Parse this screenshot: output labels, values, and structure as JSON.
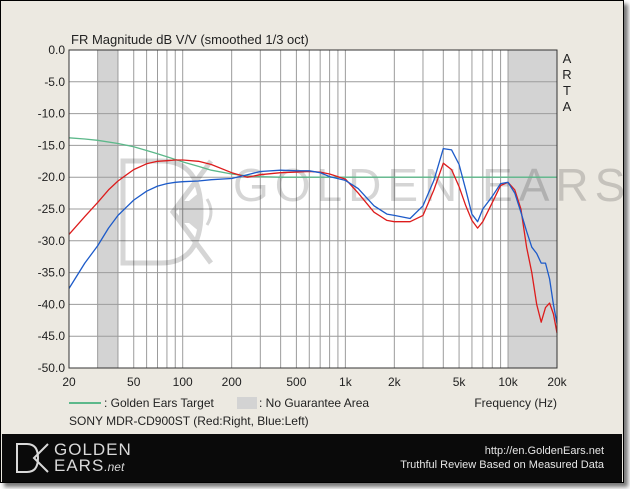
{
  "chart_data": {
    "type": "line",
    "title": "FR Magnitude dB V/V (smoothed 1/3 oct)",
    "side_label": "ARTA",
    "xlabel": "Frequency (Hz)",
    "x_scale": "log",
    "xlim": [
      20,
      20000
    ],
    "ylim": [
      -50,
      0
    ],
    "y_ticks": [
      "0.0",
      "-5.0",
      "-10.0",
      "-15.0",
      "-20.0",
      "-25.0",
      "-30.0",
      "-35.0",
      "-40.0",
      "-45.0",
      "-50.0"
    ],
    "x_ticks": [
      {
        "value": 20,
        "label": "20"
      },
      {
        "value": 50,
        "label": "50"
      },
      {
        "value": 100,
        "label": "100"
      },
      {
        "value": 200,
        "label": "200"
      },
      {
        "value": 500,
        "label": "500"
      },
      {
        "value": 1000,
        "label": "1k"
      },
      {
        "value": 2000,
        "label": "2k"
      },
      {
        "value": 5000,
        "label": "5k"
      },
      {
        "value": 10000,
        "label": "10k"
      },
      {
        "value": 20000,
        "label": "20k"
      }
    ],
    "grid": true,
    "no_guarantee_regions": [
      [
        30,
        40
      ],
      [
        10000,
        20000
      ]
    ],
    "watermark": "GOLDEN EARS",
    "series": [
      {
        "name": "Golden Ears Target",
        "color": "#5cb88a",
        "x": [
          20,
          25,
          30,
          40,
          50,
          60,
          70,
          80,
          100,
          125,
          150,
          200,
          250,
          300,
          400,
          500,
          1000,
          2000,
          5000,
          10000,
          20000
        ],
        "y": [
          -13.8,
          -14.0,
          -14.2,
          -14.7,
          -15.2,
          -15.8,
          -16.3,
          -16.8,
          -17.6,
          -18.3,
          -18.9,
          -19.5,
          -19.8,
          -19.9,
          -20.0,
          -20.0,
          -20.0,
          -20.0,
          -20.0,
          -20.0,
          -20.0
        ]
      },
      {
        "name": "Right",
        "color": "#dd1c1c",
        "x": [
          20,
          25,
          30,
          35,
          40,
          50,
          60,
          70,
          80,
          90,
          100,
          125,
          150,
          200,
          250,
          300,
          400,
          500,
          600,
          700,
          800,
          1000,
          1200,
          1500,
          1800,
          2000,
          2500,
          3000,
          3500,
          4000,
          4500,
          5000,
          5500,
          6000,
          6500,
          7000,
          8000,
          9000,
          10000,
          11000,
          12000,
          13000,
          14000,
          15000,
          16000,
          17000,
          18000,
          19000,
          20000
        ],
        "y": [
          -29.0,
          -26.2,
          -24.0,
          -22.0,
          -20.6,
          -18.8,
          -17.9,
          -17.5,
          -17.4,
          -17.3,
          -17.3,
          -17.5,
          -18.0,
          -19.3,
          -20.0,
          -19.6,
          -19.3,
          -19.2,
          -19.1,
          -19.2,
          -19.5,
          -20.3,
          -22.5,
          -25.5,
          -26.8,
          -27.0,
          -27.0,
          -26.0,
          -22.0,
          -17.8,
          -18.8,
          -21.5,
          -24.5,
          -26.8,
          -28.0,
          -27.0,
          -24.0,
          -21.3,
          -20.8,
          -22.0,
          -25.0,
          -31.0,
          -35.0,
          -40.0,
          -42.8,
          -40.5,
          -39.8,
          -41.5,
          -44.5
        ]
      },
      {
        "name": "Left",
        "color": "#1d5bc9",
        "x": [
          20,
          25,
          30,
          35,
          40,
          50,
          60,
          70,
          80,
          90,
          100,
          125,
          150,
          200,
          250,
          300,
          400,
          500,
          600,
          700,
          800,
          1000,
          1200,
          1500,
          1800,
          2000,
          2500,
          3000,
          3500,
          4000,
          4500,
          5000,
          5500,
          6000,
          6500,
          7000,
          8000,
          9000,
          10000,
          11000,
          12000,
          13000,
          14000,
          15000,
          16000,
          17000,
          18000,
          19000,
          20000
        ],
        "y": [
          -37.5,
          -33.5,
          -30.8,
          -28.0,
          -26.0,
          -23.6,
          -22.2,
          -21.4,
          -21.0,
          -20.8,
          -20.7,
          -20.6,
          -20.4,
          -20.2,
          -19.6,
          -19.1,
          -18.9,
          -19.0,
          -19.0,
          -19.3,
          -19.9,
          -20.5,
          -21.8,
          -24.5,
          -25.8,
          -26.0,
          -26.5,
          -24.5,
          -20.5,
          -15.5,
          -15.7,
          -18.0,
          -22.0,
          -25.8,
          -27.0,
          -25.0,
          -23.0,
          -21.0,
          -20.8,
          -22.5,
          -25.5,
          -28.5,
          -31.0,
          -32.0,
          -33.5,
          -33.5,
          -36.0,
          -40.0,
          -43.0
        ]
      }
    ]
  },
  "legend": {
    "target_label": ": Golden Ears Target",
    "area_label": ": No Guarantee Area",
    "target_color": "#5cb88a",
    "area_color": "#d3d3d3",
    "caption": "SONY MDR-CD900ST (Red:Right, Blue:Left)"
  },
  "footer": {
    "logo_line1": "GOLDEN",
    "logo_line2": "EARS",
    "logo_suffix": ".net",
    "url": "http://en.GoldenEars.net",
    "tagline": "Truthful Review Based on Measured Data"
  }
}
